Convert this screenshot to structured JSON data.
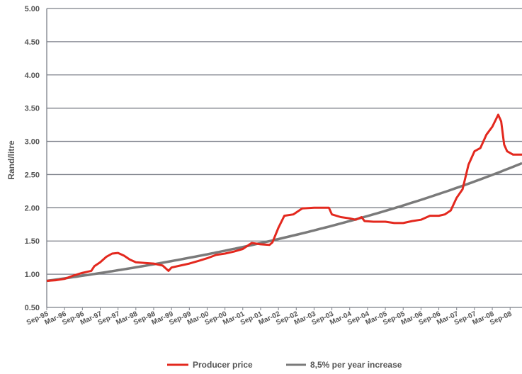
{
  "chart_data": {
    "type": "line",
    "ylabel": "Rand/litre",
    "xlabel": "",
    "ylim": [
      0.5,
      5.0
    ],
    "yticks": [
      "0.50",
      "1.00",
      "1.50",
      "2.00",
      "2.50",
      "3.00",
      "3.50",
      "4.00",
      "4.50",
      "5.00"
    ],
    "grid": true,
    "legend_position": "bottom",
    "x_categories": [
      "Sep-95",
      "Mar-96",
      "Sep-96",
      "Mar-97",
      "Sep-97",
      "Mar-98",
      "Sep-98",
      "Mar-99",
      "Sep-99",
      "Mar-00",
      "Sep-00",
      "Mar-01",
      "Sep-01",
      "Mar-02",
      "Sep-02",
      "Mar-03",
      "Sep-03",
      "Mar-04",
      "Sep-04",
      "Mar-05",
      "Sep-05",
      "Mar-06",
      "Sep-06",
      "Mar-07",
      "Sep-07",
      "Mar-08",
      "Sep-08"
    ],
    "x_start": "1995-09",
    "x_end": "2009-01",
    "series": [
      {
        "name": "Producer price",
        "color": "#e3281e",
        "points": [
          [
            "1995-09",
            0.9
          ],
          [
            "1995-12",
            0.91
          ],
          [
            "1996-03",
            0.93
          ],
          [
            "1996-06",
            0.98
          ],
          [
            "1996-09",
            1.02
          ],
          [
            "1996-12",
            1.05
          ],
          [
            "1997-01",
            1.12
          ],
          [
            "1997-03",
            1.18
          ],
          [
            "1997-05",
            1.26
          ],
          [
            "1997-07",
            1.31
          ],
          [
            "1997-09",
            1.32
          ],
          [
            "1997-11",
            1.28
          ],
          [
            "1998-01",
            1.22
          ],
          [
            "1998-03",
            1.18
          ],
          [
            "1998-06",
            1.17
          ],
          [
            "1998-09",
            1.16
          ],
          [
            "1998-12",
            1.13
          ],
          [
            "1999-02",
            1.05
          ],
          [
            "1999-03",
            1.1
          ],
          [
            "1999-06",
            1.13
          ],
          [
            "1999-09",
            1.16
          ],
          [
            "1999-12",
            1.2
          ],
          [
            "2000-03",
            1.24
          ],
          [
            "2000-06",
            1.29
          ],
          [
            "2000-09",
            1.31
          ],
          [
            "2000-12",
            1.34
          ],
          [
            "2001-03",
            1.38
          ],
          [
            "2001-06",
            1.47
          ],
          [
            "2001-09",
            1.45
          ],
          [
            "2001-12",
            1.44
          ],
          [
            "2002-01",
            1.48
          ],
          [
            "2002-03",
            1.7
          ],
          [
            "2002-05",
            1.88
          ],
          [
            "2002-08",
            1.9
          ],
          [
            "2002-11",
            1.99
          ],
          [
            "2003-03",
            2.0
          ],
          [
            "2003-08",
            2.0
          ],
          [
            "2003-09",
            1.9
          ],
          [
            "2003-12",
            1.86
          ],
          [
            "2004-03",
            1.84
          ],
          [
            "2004-05",
            1.82
          ],
          [
            "2004-07",
            1.86
          ],
          [
            "2004-08",
            1.8
          ],
          [
            "2004-11",
            1.79
          ],
          [
            "2005-03",
            1.79
          ],
          [
            "2005-06",
            1.77
          ],
          [
            "2005-09",
            1.77
          ],
          [
            "2005-12",
            1.8
          ],
          [
            "2006-03",
            1.82
          ],
          [
            "2006-06",
            1.88
          ],
          [
            "2006-09",
            1.88
          ],
          [
            "2006-11",
            1.9
          ],
          [
            "2007-01",
            1.96
          ],
          [
            "2007-03",
            2.15
          ],
          [
            "2007-05",
            2.28
          ],
          [
            "2007-07",
            2.65
          ],
          [
            "2007-09",
            2.85
          ],
          [
            "2007-11",
            2.9
          ],
          [
            "2008-01",
            3.1
          ],
          [
            "2008-03",
            3.22
          ],
          [
            "2008-05",
            3.4
          ],
          [
            "2008-06",
            3.3
          ],
          [
            "2008-07",
            2.95
          ],
          [
            "2008-08",
            2.85
          ],
          [
            "2008-10",
            2.8
          ],
          [
            "2009-01",
            2.8
          ]
        ]
      },
      {
        "name": "8,5% per year increase",
        "color": "#7a7a7a",
        "growth_rate": 0.085,
        "start_value": 0.9
      }
    ]
  }
}
